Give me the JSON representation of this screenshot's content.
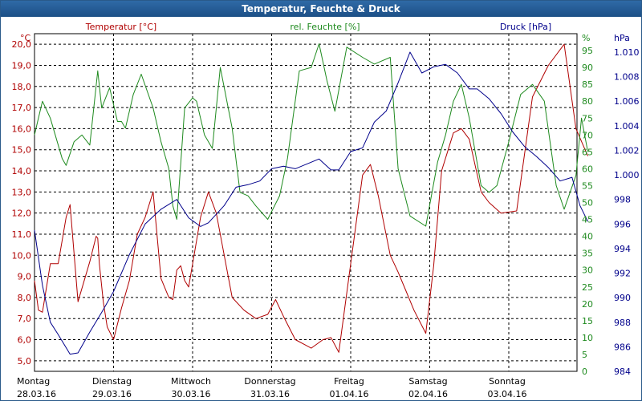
{
  "window": {
    "title": "Temperatur, Feuchte & Druck"
  },
  "colors": {
    "temperature": "#b00000",
    "humidity": "#1e8a1e",
    "pressure": "#00008b",
    "title_bar": "#2460a0",
    "grid": "#000000"
  },
  "chart_data": {
    "type": "line",
    "title": "Temperatur, Feuchte & Druck",
    "grid": true,
    "x_days": [
      {
        "day": "Montag",
        "date": "28.03.16"
      },
      {
        "day": "Dienstag",
        "date": "29.03.16"
      },
      {
        "day": "Mittwoch",
        "date": "30.03.16"
      },
      {
        "day": "Donnerstag",
        "date": "31.03.16"
      },
      {
        "day": "Freitag",
        "date": "01.04.16"
      },
      {
        "day": "Samstag",
        "date": "02.04.16"
      },
      {
        "day": "Sonntag",
        "date": "03.04.16"
      }
    ],
    "axes": {
      "temperature": {
        "label": "Temperatur [°C]",
        "unit": "°C",
        "min": 4.5,
        "max": 20.5,
        "ticks": [
          "5,0",
          "6,0",
          "7,0",
          "8,0",
          "9,0",
          "10,0",
          "11,0",
          "12,0",
          "13,0",
          "14,0",
          "15,0",
          "16,0",
          "17,0",
          "18,0",
          "19,0",
          "20,0"
        ]
      },
      "humidity": {
        "label": "rel. Feuchte [%]",
        "unit": "%",
        "min": 0,
        "max": 100,
        "ticks": [
          "0",
          "5",
          "10",
          "15",
          "20",
          "25",
          "30",
          "35",
          "40",
          "45",
          "50",
          "55",
          "60",
          "65",
          "70",
          "75",
          "80",
          "85",
          "90",
          "95"
        ]
      },
      "pressure": {
        "label": "Druck [hPa]",
        "unit": "hPa",
        "min": 984,
        "max": 1011.5,
        "ticks": [
          "984",
          "986",
          "988",
          "990",
          "992",
          "994",
          "996",
          "998",
          "1.000",
          "1.002",
          "1.004",
          "1.006",
          "1.008",
          "1.010"
        ]
      }
    },
    "series": [
      {
        "name": "Temperatur [°C]",
        "axis": "temperature",
        "x": [
          0,
          0.05,
          0.1,
          0.2,
          0.3,
          0.4,
          0.45,
          0.55,
          0.7,
          0.78,
          0.8,
          0.82,
          0.87,
          0.92,
          1.0,
          1.1,
          1.2,
          1.3,
          1.4,
          1.5,
          1.6,
          1.7,
          1.75,
          1.8,
          1.85,
          1.9,
          1.95,
          2.1,
          2.2,
          2.3,
          2.4,
          2.5,
          2.65,
          2.8,
          2.95,
          3.05,
          3.15,
          3.3,
          3.5,
          3.65,
          3.75,
          3.85,
          4.0,
          4.15,
          4.25,
          4.35,
          4.5,
          4.6,
          4.7,
          4.8,
          4.95,
          5.05,
          5.15,
          5.3,
          5.4,
          5.5,
          5.65,
          5.75,
          5.9,
          6.1,
          6.3,
          6.5,
          6.7,
          6.85,
          7.0
        ],
        "values": [
          8.8,
          7.4,
          7.3,
          9.6,
          9.6,
          11.8,
          12.4,
          7.8,
          9.7,
          10.9,
          10.8,
          9.6,
          7.8,
          6.6,
          6.0,
          7.5,
          8.8,
          11.0,
          11.8,
          13.0,
          8.9,
          8.0,
          7.9,
          9.3,
          9.5,
          8.8,
          8.5,
          11.8,
          13.0,
          12.0,
          10.0,
          8.0,
          7.4,
          7.0,
          7.2,
          7.9,
          7.1,
          6.0,
          5.6,
          6.0,
          6.1,
          5.4,
          9.6,
          13.8,
          14.3,
          12.8,
          10.0,
          9.2,
          8.3,
          7.4,
          6.3,
          9.5,
          14.0,
          15.8,
          16.0,
          15.5,
          13.0,
          12.5,
          12.0,
          12.1,
          17.5,
          19.0,
          20.0,
          16.0,
          14.7
        ]
      },
      {
        "name": "rel. Feuchte [%]",
        "axis": "humidity",
        "x": [
          0,
          0.05,
          0.1,
          0.2,
          0.35,
          0.4,
          0.5,
          0.6,
          0.7,
          0.8,
          0.85,
          0.95,
          1.05,
          1.1,
          1.15,
          1.25,
          1.35,
          1.5,
          1.6,
          1.7,
          1.75,
          1.8,
          1.9,
          2.0,
          2.05,
          2.15,
          2.25,
          2.35,
          2.5,
          2.6,
          2.7,
          2.8,
          2.95,
          3.1,
          3.2,
          3.35,
          3.5,
          3.6,
          3.7,
          3.8,
          3.95,
          4.15,
          4.3,
          4.5,
          4.6,
          4.75,
          4.95,
          5.1,
          5.2,
          5.3,
          5.4,
          5.5,
          5.65,
          5.75,
          5.85,
          6.0,
          6.15,
          6.3,
          6.45,
          6.6,
          6.7,
          6.85,
          6.92,
          7.0
        ],
        "values": [
          70,
          75,
          80,
          75,
          63,
          61,
          68,
          70,
          67,
          89,
          78,
          84,
          74,
          74,
          72,
          82,
          88,
          78,
          68,
          60,
          49,
          45,
          78,
          81,
          80,
          70,
          66,
          90,
          72,
          53,
          52,
          49,
          45,
          52,
          63,
          89,
          90,
          97,
          86,
          77,
          96,
          93,
          91,
          93,
          60,
          46,
          43,
          62,
          70,
          80,
          85,
          75,
          55,
          53,
          55,
          68,
          82,
          85,
          80,
          55,
          48,
          58,
          75,
          65
        ]
      },
      {
        "name": "Druck [hPa]",
        "axis": "pressure",
        "x": [
          0,
          0.1,
          0.2,
          0.3,
          0.45,
          0.55,
          0.7,
          0.85,
          1.0,
          1.2,
          1.4,
          1.6,
          1.8,
          1.95,
          2.1,
          2.2,
          2.4,
          2.55,
          2.7,
          2.85,
          3.0,
          3.15,
          3.3,
          3.45,
          3.6,
          3.75,
          3.85,
          4.0,
          4.15,
          4.3,
          4.45,
          4.6,
          4.75,
          4.9,
          5.05,
          5.2,
          5.35,
          5.5,
          5.6,
          5.75,
          5.9,
          6.05,
          6.2,
          6.35,
          6.5,
          6.65,
          6.8,
          6.9,
          7.0
        ],
        "values": [
          995.5,
          991.0,
          988.0,
          987.0,
          985.4,
          985.5,
          987.2,
          988.8,
          990.5,
          993.5,
          996.0,
          997.2,
          998.0,
          996.5,
          995.8,
          996.1,
          997.5,
          999.0,
          999.2,
          999.5,
          1000.5,
          1000.7,
          1000.5,
          1000.9,
          1001.3,
          1000.4,
          1000.4,
          1001.9,
          1002.2,
          1004.3,
          1005.2,
          1007.5,
          1010.0,
          1008.3,
          1008.8,
          1009.0,
          1008.3,
          1007.0,
          1007.0,
          1006.2,
          1005.0,
          1003.5,
          1002.3,
          1001.5,
          1000.6,
          999.5,
          999.8,
          997.5,
          996.2
        ]
      }
    ]
  }
}
